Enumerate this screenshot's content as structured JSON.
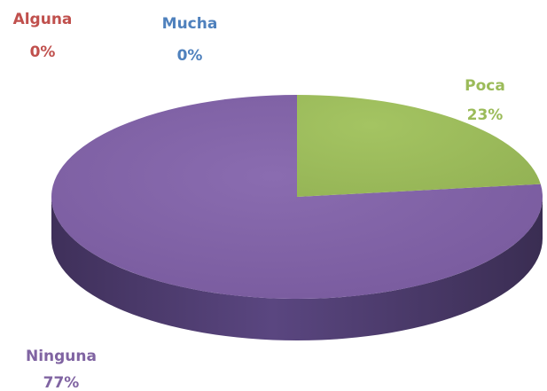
{
  "chart_data": {
    "type": "pie",
    "style": "3d",
    "categories": [
      "Alguna",
      "Mucha",
      "Poca",
      "Ninguna"
    ],
    "values": [
      0,
      0,
      23,
      77
    ],
    "value_labels": [
      "0%",
      "0%",
      "23%",
      "77%"
    ],
    "colors": {
      "Alguna": "#c0504d",
      "Mucha": "#4f81bd",
      "Poca": "#9bbb59",
      "Ninguna": "#8064a2"
    },
    "label_colors": {
      "Alguna": "#c0504d",
      "Mucha": "#4f81bd",
      "Poca": "#9bbb59",
      "Ninguna": "#8064a2"
    },
    "legend": "none",
    "title": ""
  }
}
